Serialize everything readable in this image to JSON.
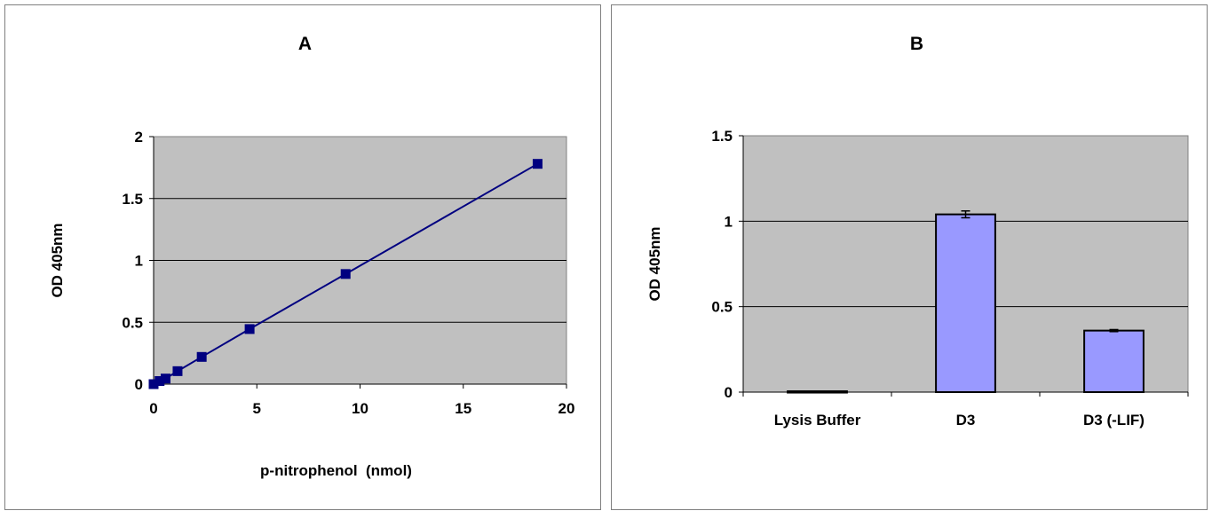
{
  "chart_data": [
    {
      "type": "scatter",
      "title": "A",
      "xlabel": "p-nitrophenol  (nmol)",
      "ylabel": "OD 405nm",
      "xlim": [
        0,
        20
      ],
      "ylim": [
        0,
        2
      ],
      "xticks": [
        "0",
        "5",
        "10",
        "15",
        "20"
      ],
      "yticks": [
        "0",
        "0.5",
        "1",
        "1.5",
        "2"
      ],
      "grid": true,
      "legend": "none",
      "marker": "square",
      "line": "connected",
      "series": [
        {
          "x": [
            0,
            0.29,
            0.58,
            1.16,
            2.33,
            4.65,
            9.3,
            18.6
          ],
          "y": [
            0.0,
            0.025,
            0.045,
            0.105,
            0.22,
            0.445,
            0.89,
            1.78
          ]
        }
      ],
      "colors": {
        "series": "#000080",
        "plot_bg": "#c0c0c0"
      }
    },
    {
      "type": "bar",
      "title": "B",
      "xlabel": "",
      "ylabel": "OD 405nm",
      "ylim": [
        0,
        1.5
      ],
      "yticks": [
        "0",
        "0.5",
        "1",
        "1.5"
      ],
      "grid": true,
      "legend": "none",
      "categories": [
        "Lysis Buffer",
        "D3",
        "D3 (-LIF)"
      ],
      "series": [
        {
          "values": [
            0.005,
            1.04,
            0.36
          ],
          "errors": [
            0.0,
            0.02,
            0.006
          ]
        }
      ],
      "colors": {
        "bar": "#9999ff",
        "plot_bg": "#c0c0c0"
      }
    }
  ]
}
